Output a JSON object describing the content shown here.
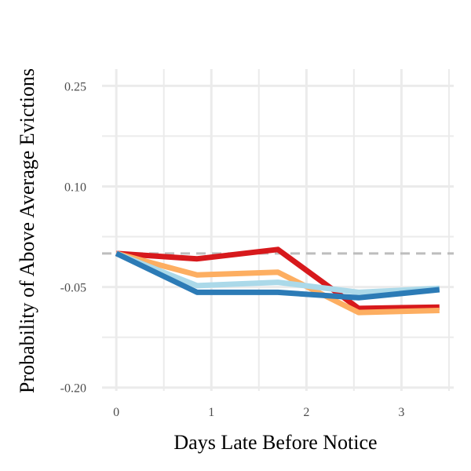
{
  "chart_data": {
    "type": "line",
    "xlabel": "Days Late Before Notice",
    "ylabel": "Probability of Above Average Evictions",
    "xlim": [
      -0.15,
      3.55
    ],
    "ylim": [
      -0.205,
      0.275
    ],
    "x_ticks": [
      0,
      1,
      2,
      3
    ],
    "x_tick_labels": [
      "0",
      "1",
      "2",
      "3"
    ],
    "y_ticks": [
      -0.2,
      -0.05,
      0.1,
      0.25
    ],
    "y_tick_labels": [
      "-0.20",
      "-0.05",
      "0.10",
      "0.25"
    ],
    "grid": true,
    "legend": "none",
    "reference_line": {
      "y": 0.0,
      "style": "dashed",
      "color": "#bdbdbd"
    },
    "x": [
      0,
      0.85,
      1.7,
      2.55,
      3.4
    ],
    "series": [
      {
        "color": "#d7191c",
        "values": [
          0.0,
          -0.008,
          0.006,
          -0.082,
          -0.08
        ]
      },
      {
        "color": "#fdae61",
        "values": [
          0.0,
          -0.032,
          -0.028,
          -0.088,
          -0.085
        ]
      },
      {
        "color": "#abd9e9",
        "values": [
          0.0,
          -0.048,
          -0.043,
          -0.058,
          -0.052
        ]
      },
      {
        "color": "#2c7bb6",
        "values": [
          0.0,
          -0.058,
          -0.058,
          -0.066,
          -0.054
        ]
      }
    ]
  }
}
